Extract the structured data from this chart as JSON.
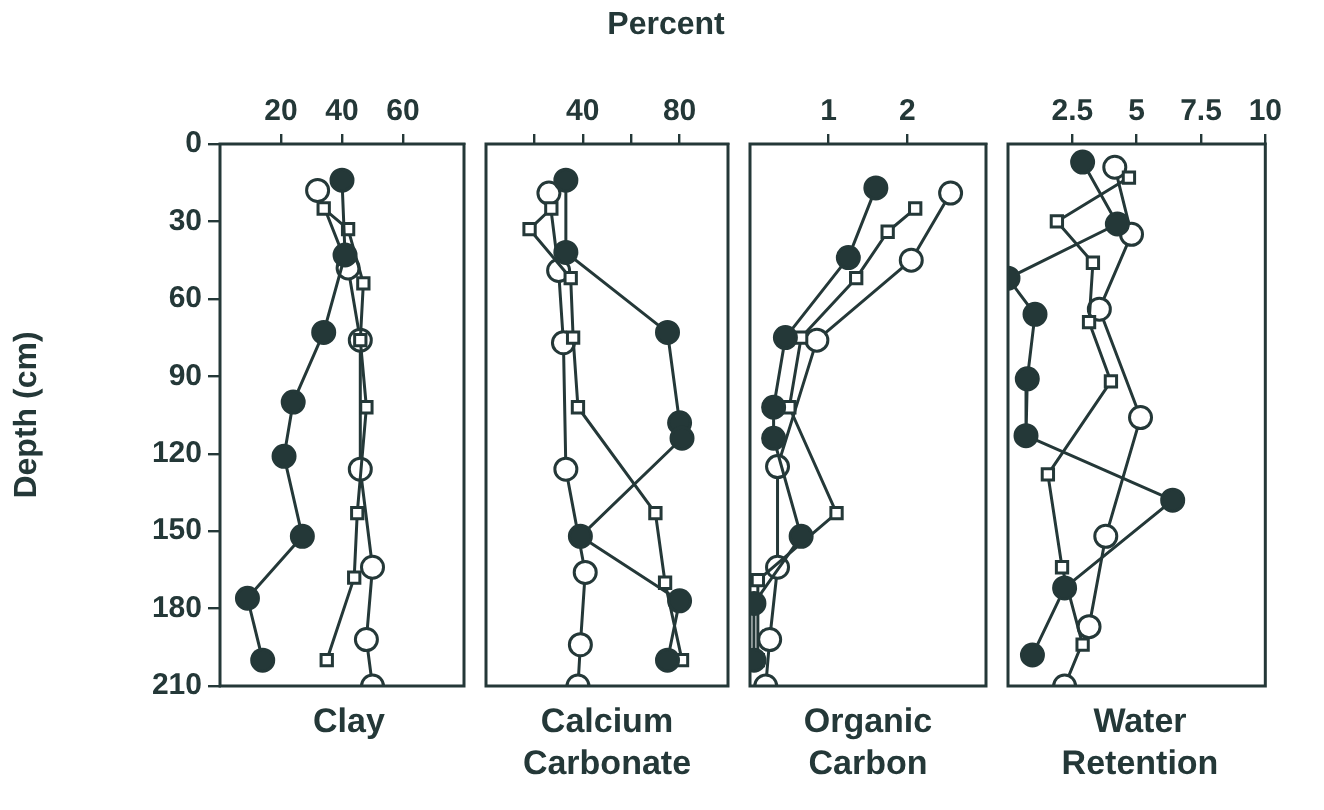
{
  "chart_data": [
    {
      "type": "line",
      "xlabel": "Clay",
      "ylabel": "Depth (cm)",
      "xlim": [
        0,
        80
      ],
      "xticks": [
        20,
        40,
        60
      ],
      "ylim": [
        210,
        0
      ],
      "yticks": [
        0,
        30,
        60,
        90,
        120,
        150,
        180,
        210
      ],
      "grid": false,
      "legend": false,
      "series": [
        {
          "color": "#243838",
          "marker": "circle",
          "x": [
            40,
            41,
            34,
            24,
            21,
            27,
            9,
            14
          ],
          "values": [
            14,
            43,
            73,
            100,
            121,
            152,
            176,
            200
          ]
        },
        {
          "color": "#ffffff",
          "marker": "square",
          "x": [
            34,
            42,
            47,
            46,
            48,
            45,
            44,
            35
          ],
          "values": [
            25,
            33,
            54,
            76,
            102,
            143,
            168,
            200
          ]
        },
        {
          "color": "#ffffff",
          "marker": "circle",
          "x": [
            32,
            42,
            46,
            46,
            50,
            48,
            50
          ],
          "values": [
            18,
            48,
            76,
            126,
            164,
            192,
            210
          ]
        }
      ]
    },
    {
      "type": "line",
      "title": "Percent",
      "xlabel": "Calcium\nCarbonate",
      "xlim": [
        0,
        100
      ],
      "xticks": [
        {
          "value": 20,
          "label": null
        },
        40,
        {
          "value": 60,
          "label": null
        },
        80
      ],
      "ylim": [
        210,
        0
      ],
      "tick_labels": "x",
      "grid": false,
      "legend": false,
      "series": [
        {
          "color": "#243838",
          "marker": "circle",
          "x": [
            33,
            33,
            75,
            80,
            81,
            39,
            80,
            75
          ],
          "values": [
            14,
            42,
            73,
            108,
            114,
            152,
            177,
            200
          ]
        },
        {
          "color": "#ffffff",
          "marker": "square",
          "x": [
            27,
            18,
            35,
            36,
            38,
            70,
            74,
            81
          ],
          "values": [
            25,
            33,
            52,
            75,
            102,
            143,
            170,
            200
          ]
        },
        {
          "color": "#ffffff",
          "marker": "circle",
          "x": [
            26,
            30,
            32,
            33,
            41,
            39,
            38
          ],
          "values": [
            19,
            49,
            77,
            126,
            166,
            194,
            210
          ]
        }
      ]
    },
    {
      "type": "line",
      "xlabel": "Organic\nCarbon",
      "xlim": [
        0,
        3
      ],
      "xticks": [
        1,
        2
      ],
      "ylim": [
        210,
        0
      ],
      "tick_labels": "x",
      "grid": false,
      "legend": false,
      "series": [
        {
          "color": "#243838",
          "marker": "circle",
          "x": [
            1.6,
            1.25,
            0.45,
            0.3,
            0.3,
            0.65,
            0.05,
            0.05
          ],
          "values": [
            17,
            44,
            75,
            102,
            114,
            152,
            178,
            200
          ]
        },
        {
          "color": "#ffffff",
          "marker": "square",
          "x": [
            2.1,
            1.75,
            1.35,
            0.65,
            0.5,
            1.1,
            0.1,
            0.1
          ],
          "values": [
            25,
            34,
            52,
            75,
            102,
            143,
            169,
            200
          ]
        },
        {
          "color": "#ffffff",
          "marker": "circle",
          "x": [
            2.55,
            2.05,
            0.85,
            0.35,
            0.35,
            0.25,
            0.2
          ],
          "values": [
            19,
            45,
            76,
            125,
            164,
            192,
            210
          ]
        }
      ]
    },
    {
      "type": "line",
      "xlabel": "Water\nRetention",
      "xlim": [
        0,
        10
      ],
      "xticks": [
        2.5,
        5,
        7.5,
        10
      ],
      "ylim": [
        210,
        0
      ],
      "tick_labels": "x",
      "grid": false,
      "legend": false,
      "series": [
        {
          "color": "#243838",
          "marker": "circle",
          "x": [
            2.9,
            4.25,
            0,
            1.05,
            0.75,
            0.7,
            6.4,
            2.2,
            0.95
          ],
          "values": [
            7,
            31,
            52,
            66,
            91,
            113,
            138,
            172,
            198
          ]
        },
        {
          "color": "#ffffff",
          "marker": "square",
          "x": [
            4.7,
            1.9,
            3.3,
            3.15,
            4,
            1.55,
            2.1,
            2.9
          ],
          "values": [
            13,
            30,
            46,
            69,
            92,
            128,
            164,
            194
          ]
        },
        {
          "color": "#ffffff",
          "marker": "circle",
          "x": [
            4.15,
            4.8,
            3.55,
            5.15,
            3.8,
            3.15,
            2.2
          ],
          "values": [
            9,
            35,
            64,
            106,
            152,
            187,
            210
          ]
        }
      ]
    }
  ]
}
